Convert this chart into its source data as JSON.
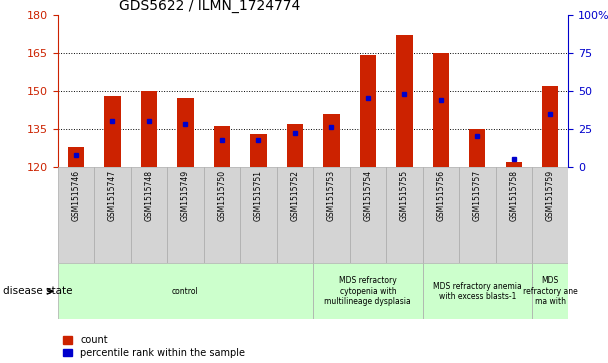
{
  "title": "GDS5622 / ILMN_1724774",
  "samples": [
    "GSM1515746",
    "GSM1515747",
    "GSM1515748",
    "GSM1515749",
    "GSM1515750",
    "GSM1515751",
    "GSM1515752",
    "GSM1515753",
    "GSM1515754",
    "GSM1515755",
    "GSM1515756",
    "GSM1515757",
    "GSM1515758",
    "GSM1515759"
  ],
  "counts": [
    128,
    148,
    150,
    147,
    136,
    133,
    137,
    141,
    164,
    172,
    165,
    135,
    122,
    152
  ],
  "percentile_ranks": [
    8,
    30,
    30,
    28,
    18,
    18,
    22,
    26,
    45,
    48,
    44,
    20,
    5,
    35
  ],
  "ylim_left": [
    120,
    180
  ],
  "ylim_right": [
    0,
    100
  ],
  "yticks_left": [
    120,
    135,
    150,
    165,
    180
  ],
  "yticks_right": [
    0,
    25,
    50,
    75,
    100
  ],
  "bar_color": "#cc2200",
  "marker_color": "#0000cc",
  "bar_width": 0.45,
  "disease_groups": [
    {
      "label": "control",
      "start": 0,
      "end": 7,
      "color": "#ccffcc"
    },
    {
      "label": "MDS refractory\ncytopenia with\nmultilineage dysplasia",
      "start": 7,
      "end": 10,
      "color": "#ccffcc"
    },
    {
      "label": "MDS refractory anemia\nwith excess blasts-1",
      "start": 10,
      "end": 13,
      "color": "#ccffcc"
    },
    {
      "label": "MDS\nrefractory ane\nma with",
      "start": 13,
      "end": 14,
      "color": "#ccffcc"
    }
  ],
  "legend_count_label": "count",
  "legend_pct_label": "percentile rank within the sample",
  "xlabel_disease": "disease state",
  "title_fontsize": 10,
  "tick_fontsize": 8,
  "label_fontsize": 6,
  "disease_fontsize": 5.5
}
